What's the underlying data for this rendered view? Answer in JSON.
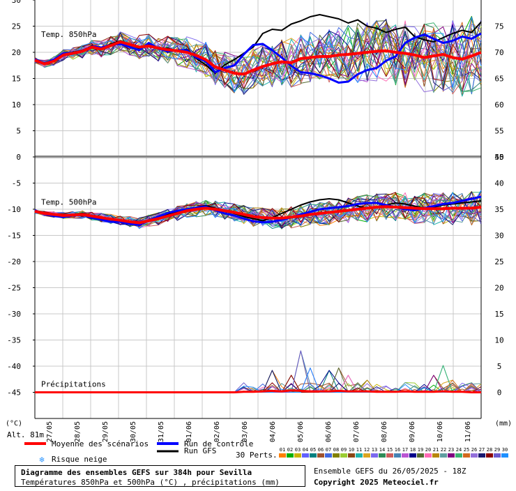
{
  "chart_data": {
    "type": "line",
    "title": "Diagramme des ensembles GEFS sur 384h pour Sevilla",
    "subtitle": "Températures 850hPa et 500hPa (°C) , précipitations (mm)",
    "run_info": "Ensemble GEFS du 26/05/2025 - 18Z",
    "copyright": "Copyright 2025 Meteociel.fr",
    "altitude": "Alt. 81m",
    "left_unit": "(°C)",
    "right_unit": "(mm)",
    "dates": [
      "27/05",
      "28/05",
      "29/05",
      "30/05",
      "31/05",
      "01/06",
      "02/06",
      "03/06",
      "04/06",
      "05/06",
      "06/06",
      "07/06",
      "08/06",
      "09/06",
      "10/06",
      "11/06"
    ],
    "left_ticks": [
      30,
      25,
      20,
      15,
      10,
      5,
      0,
      -5,
      -10,
      -15,
      -20,
      -25,
      -30,
      -35,
      -40,
      -45
    ],
    "right_ticks_top": [
      75,
      70,
      65,
      60,
      55,
      50
    ],
    "right_ticks_bottom": [
      45,
      40,
      35,
      30,
      25,
      20,
      15,
      10,
      5,
      0
    ],
    "ylim": [
      -50,
      30
    ],
    "panels": [
      {
        "label": "Temp. 850hPa",
        "mean": [
          18.5,
          17.8,
          18.3,
          19.5,
          19.8,
          20.2,
          21.0,
          20.6,
          21.3,
          22.0,
          21.5,
          21.0,
          21.2,
          20.8,
          20.5,
          20.3,
          20.0,
          19.4,
          18.6,
          17.2,
          16.6,
          16.0,
          15.8,
          16.6,
          17.3,
          17.8,
          18.2,
          18.0,
          18.8,
          19.0,
          19.2,
          19.2,
          19.5,
          19.6,
          19.8,
          20.0,
          20.2,
          20.3,
          20.0,
          19.8,
          19.5,
          19.0,
          19.3,
          19.6,
          19.0,
          18.7,
          19.3,
          20.0
        ],
        "control": [
          18.7,
          17.9,
          18.6,
          19.8,
          19.9,
          20.3,
          21.1,
          20.9,
          21.4,
          21.6,
          21.0,
          20.4,
          21.8,
          20.7,
          20.2,
          20.4,
          20.4,
          19.0,
          18.3,
          16.2,
          17.0,
          17.5,
          19.6,
          21.4,
          21.6,
          20.4,
          19.0,
          17.4,
          16.2,
          16.0,
          15.6,
          15.0,
          14.2,
          14.4,
          15.8,
          16.6,
          17.0,
          18.4,
          19.2,
          21.8,
          22.8,
          23.4,
          22.6,
          21.8,
          22.2,
          23.0,
          22.6,
          23.6
        ],
        "gfs": [
          18.6,
          17.7,
          18.4,
          19.7,
          20.0,
          20.4,
          21.2,
          20.7,
          21.6,
          22.2,
          21.4,
          20.8,
          21.6,
          20.6,
          20.8,
          20.2,
          20.6,
          18.8,
          17.6,
          16.0,
          17.6,
          18.6,
          19.8,
          21.0,
          23.6,
          24.4,
          24.2,
          25.4,
          26.0,
          26.8,
          27.2,
          26.8,
          26.4,
          25.6,
          26.2,
          25.0,
          24.6,
          23.8,
          24.4,
          24.8,
          23.0,
          22.4,
          22.0,
          22.8,
          23.6,
          24.2,
          23.8,
          25.8
        ]
      },
      {
        "label": "Temp. 500hPa",
        "mean": [
          -10.4,
          -10.8,
          -11.0,
          -11.2,
          -11.1,
          -11.0,
          -11.3,
          -11.6,
          -11.9,
          -12.1,
          -12.4,
          -12.6,
          -12.2,
          -11.8,
          -11.3,
          -10.8,
          -10.3,
          -10.0,
          -9.8,
          -10.0,
          -10.3,
          -10.6,
          -11.0,
          -11.4,
          -11.6,
          -11.7,
          -11.7,
          -11.5,
          -11.3,
          -11.0,
          -10.8,
          -10.6,
          -10.4,
          -10.2,
          -10.0,
          -9.8,
          -9.6,
          -9.5,
          -9.6,
          -9.7,
          -9.8,
          -9.9,
          -9.9,
          -9.9,
          -9.8,
          -9.8,
          -9.8,
          -9.6
        ],
        "control": [
          -10.2,
          -10.9,
          -11.3,
          -11.5,
          -11.2,
          -11.0,
          -11.6,
          -12.0,
          -12.4,
          -12.4,
          -12.8,
          -13.0,
          -12.1,
          -11.4,
          -10.7,
          -10.3,
          -10.0,
          -9.7,
          -9.5,
          -10.2,
          -10.8,
          -11.2,
          -11.8,
          -12.3,
          -12.5,
          -12.4,
          -12.0,
          -11.6,
          -11.0,
          -10.5,
          -10.0,
          -9.8,
          -9.6,
          -9.4,
          -9.0,
          -8.8,
          -8.8,
          -9.2,
          -9.6,
          -10.0,
          -10.2,
          -9.8,
          -9.4,
          -9.0,
          -8.8,
          -8.4,
          -8.0,
          -7.6
        ],
        "gfs": [
          -10.3,
          -10.7,
          -11.2,
          -11.4,
          -11.0,
          -10.8,
          -11.2,
          -11.8,
          -12.0,
          -12.2,
          -12.6,
          -12.9,
          -12.3,
          -11.5,
          -11.0,
          -10.5,
          -10.1,
          -9.6,
          -9.3,
          -9.8,
          -10.4,
          -10.8,
          -11.4,
          -11.8,
          -12.2,
          -11.6,
          -10.8,
          -10.0,
          -9.2,
          -8.6,
          -8.2,
          -8.0,
          -8.2,
          -8.8,
          -9.4,
          -9.8,
          -9.6,
          -9.2,
          -8.8,
          -9.0,
          -9.4,
          -9.8,
          -9.6,
          -9.2,
          -9.0,
          -8.8,
          -8.6,
          -8.4
        ]
      },
      {
        "label": "Précipitations",
        "mean": [
          0,
          0,
          0,
          0,
          0,
          0,
          0,
          0,
          0,
          0,
          0,
          0,
          0,
          0,
          0,
          0,
          0,
          0,
          0,
          0,
          0,
          0,
          0.1,
          0.1,
          0.2,
          0.3,
          0.2,
          0.4,
          0.3,
          0.2,
          0.2,
          0.2,
          0.3,
          0.2,
          0.2,
          0.2,
          0.1,
          0.1,
          0.1,
          0.2,
          0.1,
          0.1,
          0.1,
          0.2,
          0.1,
          0.1,
          0,
          0
        ],
        "peaks": [
          [
            25,
            4.5
          ],
          [
            27,
            3.5
          ],
          [
            28,
            8.5
          ],
          [
            29,
            5.0
          ],
          [
            31,
            4.5
          ],
          [
            32,
            5.0
          ],
          [
            33,
            3.5
          ],
          [
            35,
            2.5
          ],
          [
            39,
            2.0
          ],
          [
            42,
            3.5
          ],
          [
            43,
            5.5
          ],
          [
            44,
            2.5
          ],
          [
            46,
            1.0
          ]
        ]
      }
    ],
    "legend": {
      "mean": "Moyenne des scénarios",
      "control": "Run de contrôle",
      "gfs": "Run GFS",
      "snow": "Risque neige",
      "perts_label": "30 Perts.",
      "perts": [
        "01",
        "02",
        "03",
        "04",
        "05",
        "06",
        "07",
        "08",
        "09",
        "10",
        "11",
        "12",
        "13",
        "14",
        "15",
        "16",
        "17",
        "18",
        "19",
        "20",
        "21",
        "22",
        "23",
        "24",
        "25",
        "26",
        "27",
        "28",
        "29",
        "30"
      ]
    },
    "colors": {
      "mean": "#ff0000",
      "control": "#0000ff",
      "gfs": "#000000",
      "grid": "#c8c8c8",
      "perts": [
        "#ff7f00",
        "#00b000",
        "#c8b400",
        "#6060ff",
        "#008080",
        "#a0522d",
        "#4169e1",
        "#808000",
        "#9acd32",
        "#8b4513",
        "#20b2aa",
        "#daa520",
        "#7b68ee",
        "#2e8b57",
        "#cd5c5c",
        "#4682b4",
        "#ba55d3",
        "#00008b",
        "#556b2f",
        "#ff69b4",
        "#b8860b",
        "#5f9ea0",
        "#800080",
        "#3cb371",
        "#d2691e",
        "#9370db",
        "#191970",
        "#8b0000",
        "#6a5acd",
        "#1e90ff"
      ]
    }
  }
}
